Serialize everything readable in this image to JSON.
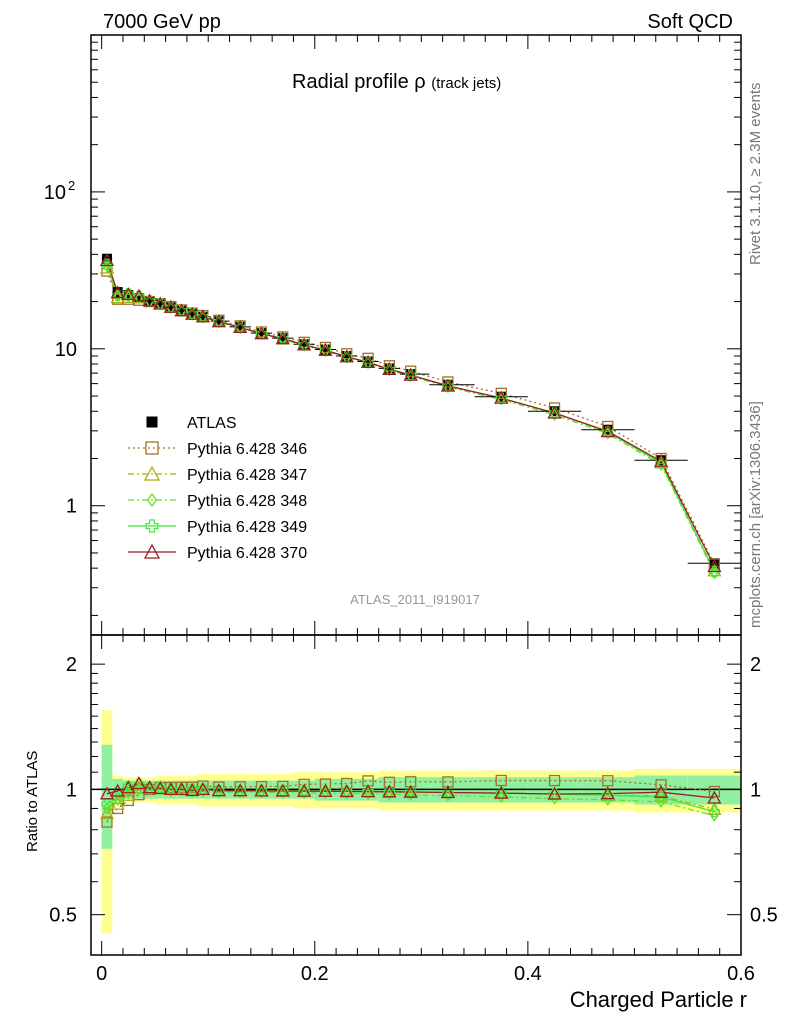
{
  "header": {
    "left": "7000 GeV pp",
    "right": "Soft QCD"
  },
  "side": {
    "rivet": "Rivet 3.1.10, ≥ 2.3M events",
    "mcplots": "mcplots.cern.ch [arXiv:1306.3436]"
  },
  "chart_data": {
    "type": "line",
    "title": "Radial profile",
    "title_symbol": "ρ",
    "title_suffix": "(track jets)",
    "analysis": "ATLAS_2011_I919017",
    "xlabel": "Charged Particle r",
    "ylabel_ratio": "Ratio to ATLAS",
    "xlim": [
      -0.01,
      0.6
    ],
    "ylim": [
      0.15,
      1000
    ],
    "ratio_ylim": [
      0.4,
      2.35
    ],
    "x_ticks": [
      "0",
      "0.2",
      "0.4",
      "0.6"
    ],
    "y_tick_labels": [
      "1",
      "10",
      "10^2"
    ],
    "ratio_tick_labels": [
      "0.5",
      "1",
      "2"
    ],
    "x": [
      0.005,
      0.015,
      0.025,
      0.035,
      0.045,
      0.055,
      0.065,
      0.075,
      0.085,
      0.095,
      0.11,
      0.13,
      0.15,
      0.17,
      0.19,
      0.21,
      0.23,
      0.25,
      0.27,
      0.29,
      0.325,
      0.375,
      0.425,
      0.475,
      0.525,
      0.575
    ],
    "data": {
      "name": "ATLAS",
      "values": [
        37.5,
        23.0,
        22.0,
        21.0,
        20.0,
        19.2,
        18.4,
        17.5,
        16.7,
        16.0,
        15.0,
        13.8,
        12.6,
        11.7,
        10.7,
        9.9,
        9.0,
        8.3,
        7.5,
        6.9,
        5.9,
        4.95,
        4.0,
        3.05,
        1.95,
        0.43
      ]
    },
    "ratio_band_inner": [
      0.28,
      0.06,
      0.05,
      0.05,
      0.05,
      0.05,
      0.05,
      0.05,
      0.05,
      0.05,
      0.05,
      0.05,
      0.05,
      0.05,
      0.05,
      0.06,
      0.06,
      0.06,
      0.07,
      0.07,
      0.07,
      0.07,
      0.07,
      0.07,
      0.08,
      0.08
    ],
    "ratio_band_outer": [
      0.55,
      0.08,
      0.07,
      0.07,
      0.07,
      0.08,
      0.08,
      0.08,
      0.08,
      0.09,
      0.09,
      0.09,
      0.09,
      0.09,
      0.1,
      0.1,
      0.1,
      0.1,
      0.11,
      0.11,
      0.11,
      0.11,
      0.11,
      0.11,
      0.12,
      0.12
    ],
    "series": [
      {
        "name": "Pythia 6.428 346",
        "color": "#a0712b",
        "marker": "square-open",
        "dash": "2,3",
        "values": [
          31.3,
          20.7,
          20.7,
          20.4,
          20.0,
          19.4,
          18.6,
          17.7,
          16.9,
          16.3,
          15.2,
          14.0,
          12.8,
          11.9,
          11.0,
          10.2,
          9.3,
          8.7,
          7.8,
          7.2,
          6.15,
          5.2,
          4.2,
          3.2,
          2.0,
          0.425
        ]
      },
      {
        "name": "Pythia 6.428 347",
        "color": "#a8b010",
        "marker": "triangle-open",
        "dash": "6,3,2,3",
        "values": [
          32.8,
          21.2,
          21.3,
          21.2,
          20.2,
          19.4,
          18.4,
          17.5,
          16.7,
          16.0,
          14.9,
          13.7,
          12.5,
          11.6,
          10.6,
          9.8,
          8.9,
          8.2,
          7.4,
          6.8,
          5.8,
          4.85,
          3.9,
          2.95,
          1.88,
          0.385
        ]
      },
      {
        "name": "Pythia 6.428 348",
        "color": "#66e020",
        "marker": "diamond-open",
        "dash": "6,3,2,3",
        "values": [
          33.8,
          21.7,
          21.6,
          21.0,
          20.0,
          19.2,
          18.2,
          17.4,
          16.5,
          15.8,
          14.8,
          13.6,
          12.4,
          11.5,
          10.5,
          9.7,
          8.8,
          8.1,
          7.3,
          6.7,
          5.7,
          4.75,
          3.8,
          2.88,
          1.82,
          0.372
        ]
      },
      {
        "name": "Pythia 6.428 349",
        "color": "#44e83c",
        "marker": "cross-open",
        "dash": "",
        "values": [
          34.6,
          21.9,
          22.4,
          21.6,
          20.2,
          19.4,
          18.4,
          17.5,
          16.7,
          16.0,
          14.9,
          13.7,
          12.5,
          11.6,
          10.6,
          9.8,
          8.9,
          8.2,
          7.4,
          6.8,
          5.8,
          4.85,
          3.9,
          2.95,
          1.87,
          0.38
        ]
      },
      {
        "name": "Pythia 6.428 370",
        "color": "#9a1c24",
        "marker": "triangle-open",
        "dash": "",
        "values": [
          36.6,
          22.8,
          22.2,
          21.7,
          20.2,
          19.3,
          18.4,
          17.5,
          16.6,
          16.0,
          14.9,
          13.7,
          12.5,
          11.6,
          10.6,
          9.8,
          8.9,
          8.2,
          7.4,
          6.8,
          5.8,
          4.85,
          3.9,
          2.98,
          1.92,
          0.41
        ]
      }
    ]
  }
}
